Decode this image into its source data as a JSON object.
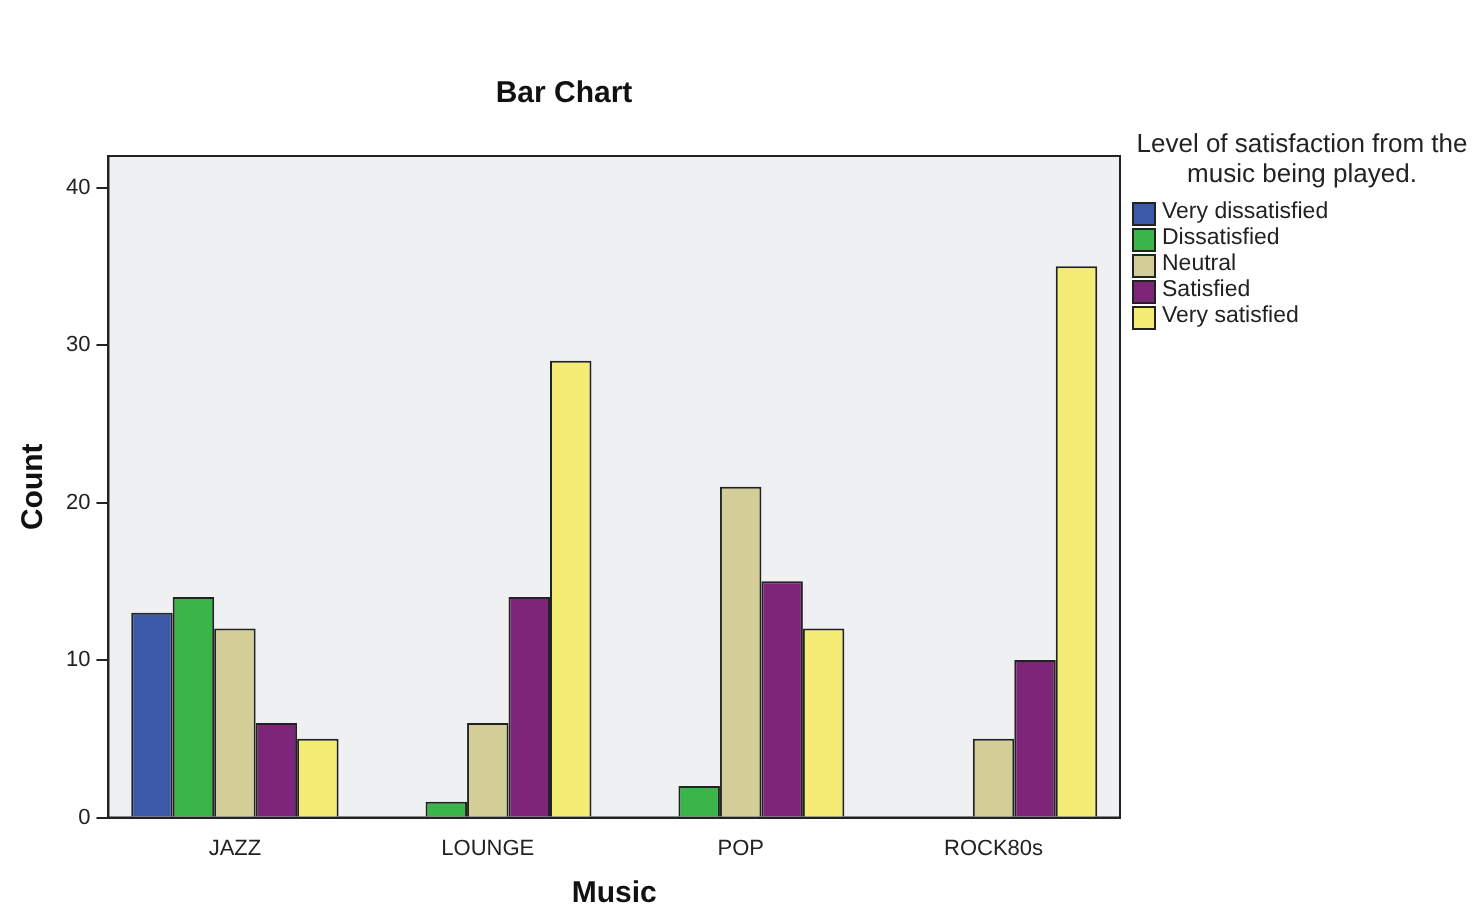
{
  "chart_data": {
    "type": "bar",
    "title": "Bar Chart",
    "xlabel": "Music",
    "ylabel": "Count",
    "legend_title": "Level of satisfaction from the music being played.",
    "categories": [
      "JAZZ",
      "LOUNGE",
      "POP",
      "ROCK80s"
    ],
    "series": [
      {
        "name": "Very dissatisfied",
        "color": "#3c58a8",
        "values": [
          13,
          null,
          null,
          null
        ]
      },
      {
        "name": "Dissatisfied",
        "color": "#3bb54a",
        "values": [
          14,
          1,
          2,
          null
        ]
      },
      {
        "name": "Neutral",
        "color": "#d3ce97",
        "values": [
          12,
          6,
          21,
          5
        ]
      },
      {
        "name": "Satisfied",
        "color": "#7d2679",
        "values": [
          6,
          14,
          15,
          10
        ]
      },
      {
        "name": "Very satisfied",
        "color": "#f4ec74",
        "values": [
          5,
          29,
          12,
          35
        ]
      }
    ],
    "ylim": [
      0,
      42
    ],
    "yticks": [
      0,
      10,
      20,
      30,
      40
    ],
    "grid": false,
    "legend": "right"
  }
}
